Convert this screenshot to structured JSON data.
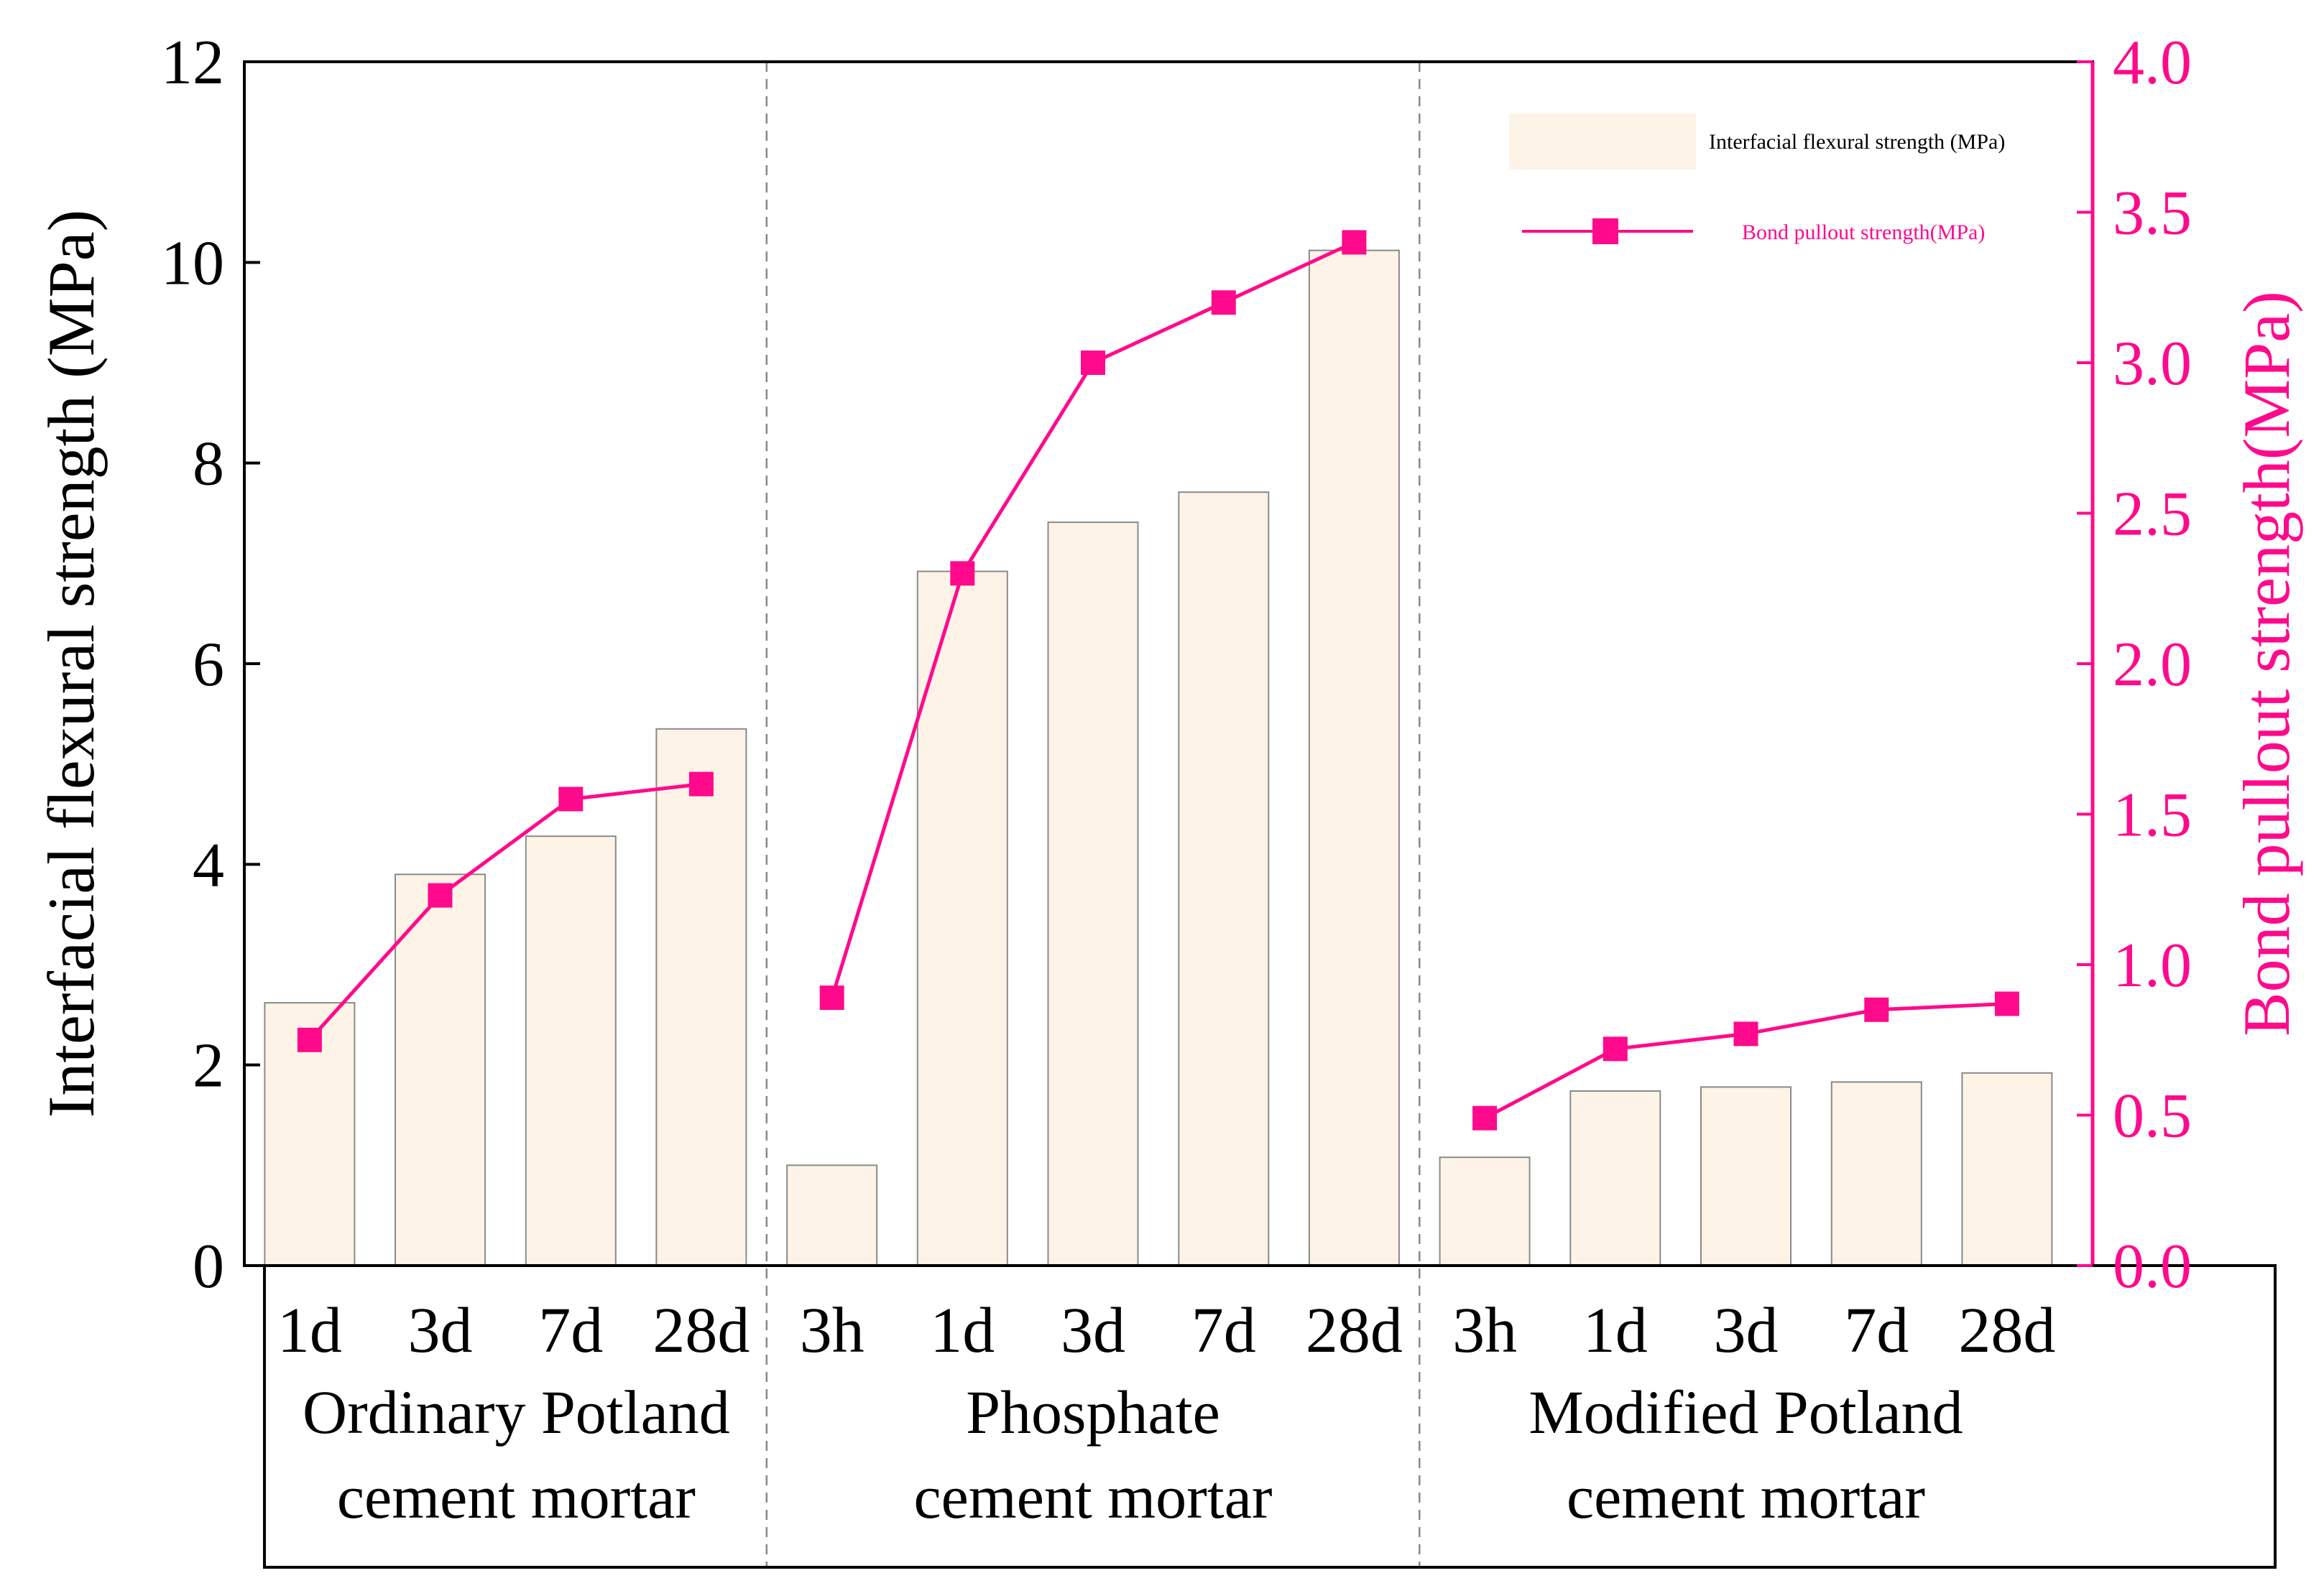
{
  "chart_data": {
    "type": "bar+line",
    "left_axis": {
      "label": "Interfacial flexural strength (MPa)",
      "range": [
        0,
        12
      ],
      "ticks": [
        "0",
        "2",
        "4",
        "6",
        "8",
        "10",
        "12"
      ]
    },
    "right_axis": {
      "label": "Bond pullout strength(MPa)",
      "range": [
        0,
        4
      ],
      "ticks": [
        "0.0",
        "0.5",
        "1.0",
        "1.5",
        "2.0",
        "2.5",
        "3.0",
        "3.5",
        "4.0"
      ]
    },
    "groups": [
      {
        "name_lines": [
          "Ordinary Potland",
          "cement mortar"
        ],
        "categories": [
          "1d",
          "3d",
          "7d",
          "28d"
        ],
        "flexural": [
          2.62,
          3.9,
          4.28,
          5.35
        ],
        "pullout": [
          0.75,
          1.23,
          1.55,
          1.6
        ]
      },
      {
        "name_lines": [
          "Phosphate",
          "cement mortar"
        ],
        "categories": [
          "3h",
          "1d",
          "3d",
          "7d",
          "28d"
        ],
        "flexural": [
          1.0,
          6.92,
          7.41,
          7.71,
          10.12
        ],
        "pullout": [
          0.89,
          2.3,
          3.0,
          3.2,
          3.4
        ]
      },
      {
        "name_lines": [
          "Modified Potland",
          "cement mortar"
        ],
        "categories": [
          "3h",
          "1d",
          "3d",
          "7d",
          "28d"
        ],
        "flexural": [
          1.08,
          1.74,
          1.78,
          1.83,
          1.92
        ],
        "pullout": [
          0.49,
          0.72,
          0.77,
          0.85,
          0.87
        ]
      }
    ],
    "legend": [
      {
        "label": "Interfacial flexural strength (MPa)",
        "kind": "bar"
      },
      {
        "label": "Bond pullout strength(MPa)",
        "kind": "line"
      }
    ],
    "colors": {
      "bar_fill": "#fdf3e7",
      "bar_stroke": "#8a8a8a",
      "line": "#ff0a8c",
      "axis": "#000000",
      "separator": "#888888"
    }
  }
}
